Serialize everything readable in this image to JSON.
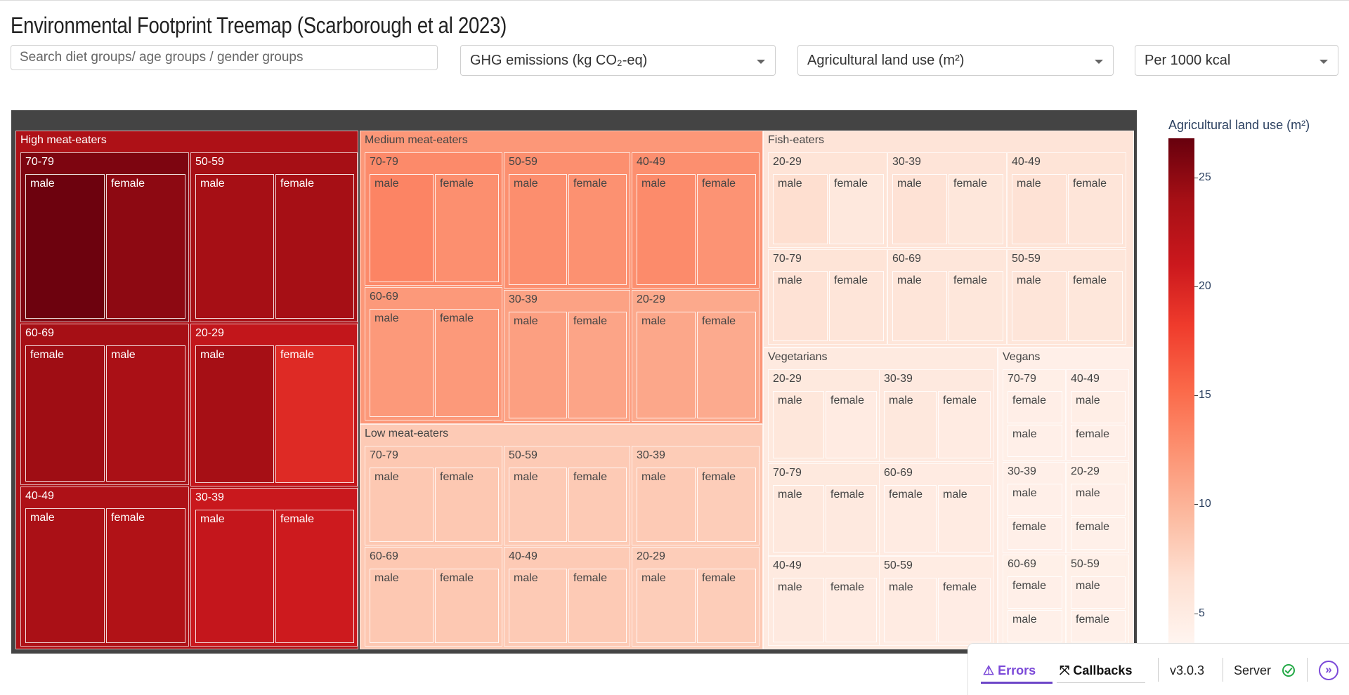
{
  "page": {
    "title": "Environmental Footprint Treemap (Scarborough et al 2023)"
  },
  "controls": {
    "search_placeholder": "Search diet groups/ age groups / gender groups",
    "emission_dropdown": "GHG emissions (kg CO₂-eq)",
    "land_dropdown": "Agricultural land use (m²)",
    "unit_dropdown": "Per 1000 kcal"
  },
  "colorbar": {
    "title": "Agricultural land use (m²)",
    "min": 3.6,
    "max": 26.8,
    "ticks": [
      5,
      10,
      15,
      20,
      25
    ],
    "colorscale": [
      "#fff5f0",
      "#fee0d2",
      "#fcbba1",
      "#fc9272",
      "#fb6a4a",
      "#ef3b2c",
      "#cb181d",
      "#a50f15",
      "#67000d"
    ]
  },
  "chart_data": {
    "type": "treemap",
    "color_metric": "Agricultural land use (m²)",
    "groups": [
      {
        "name": "High meat-eaters",
        "ages": [
          {
            "name": "70-79",
            "items": [
              {
                "name": "male",
                "value": 26.5
              },
              {
                "name": "female",
                "value": 25.0
              }
            ]
          },
          {
            "name": "50-59",
            "items": [
              {
                "name": "male",
                "value": 23.8
              },
              {
                "name": "female",
                "value": 23.8
              }
            ]
          },
          {
            "name": "60-69",
            "items": [
              {
                "name": "female",
                "value": 24.2
              },
              {
                "name": "male",
                "value": 23.5
              }
            ]
          },
          {
            "name": "20-29",
            "items": [
              {
                "name": "male",
                "value": 23.8
              },
              {
                "name": "female",
                "value": 19.5
              }
            ]
          },
          {
            "name": "40-49",
            "items": [
              {
                "name": "male",
                "value": 23.5
              },
              {
                "name": "female",
                "value": 23.0
              }
            ]
          },
          {
            "name": "30-39",
            "items": [
              {
                "name": "male",
                "value": 21.5
              },
              {
                "name": "female",
                "value": 20.8
              }
            ]
          }
        ]
      },
      {
        "name": "Medium meat-eaters",
        "ages": [
          {
            "name": "70-79",
            "items": [
              {
                "name": "male",
                "value": 13.3
              },
              {
                "name": "female",
                "value": 12.5
              }
            ]
          },
          {
            "name": "50-59",
            "items": [
              {
                "name": "male",
                "value": 12.6
              },
              {
                "name": "female",
                "value": 12.4
              }
            ]
          },
          {
            "name": "40-49",
            "items": [
              {
                "name": "male",
                "value": 12.8
              },
              {
                "name": "female",
                "value": 12.2
              }
            ]
          },
          {
            "name": "60-69",
            "items": [
              {
                "name": "male",
                "value": 11.8
              },
              {
                "name": "female",
                "value": 11.8
              }
            ]
          },
          {
            "name": "30-39",
            "items": [
              {
                "name": "male",
                "value": 11.4
              },
              {
                "name": "female",
                "value": 11.0
              }
            ]
          },
          {
            "name": "20-29",
            "items": [
              {
                "name": "male",
                "value": 10.8
              },
              {
                "name": "female",
                "value": 10.6
              }
            ]
          }
        ]
      },
      {
        "name": "Low meat-eaters",
        "ages": [
          {
            "name": "70-79",
            "items": [
              {
                "name": "male",
                "value": 8.4
              },
              {
                "name": "female",
                "value": 8.4
              }
            ]
          },
          {
            "name": "50-59",
            "items": [
              {
                "name": "male",
                "value": 8.2
              },
              {
                "name": "female",
                "value": 8.2
              }
            ]
          },
          {
            "name": "30-39",
            "items": [
              {
                "name": "male",
                "value": 8.2
              },
              {
                "name": "female",
                "value": 8.0
              }
            ]
          },
          {
            "name": "60-69",
            "items": [
              {
                "name": "male",
                "value": 8.4
              },
              {
                "name": "female",
                "value": 8.4
              }
            ]
          },
          {
            "name": "40-49",
            "items": [
              {
                "name": "male",
                "value": 8.2
              },
              {
                "name": "female",
                "value": 8.2
              }
            ]
          },
          {
            "name": "20-29",
            "items": [
              {
                "name": "male",
                "value": 8.0
              },
              {
                "name": "female",
                "value": 8.0
              }
            ]
          }
        ]
      },
      {
        "name": "Fish-eaters",
        "ages": [
          {
            "name": "20-29",
            "items": [
              {
                "name": "male",
                "value": 6.6
              },
              {
                "name": "female",
                "value": 5.4
              }
            ]
          },
          {
            "name": "30-39",
            "items": [
              {
                "name": "male",
                "value": 6.2
              },
              {
                "name": "female",
                "value": 5.6
              }
            ]
          },
          {
            "name": "40-49",
            "items": [
              {
                "name": "male",
                "value": 6.2
              },
              {
                "name": "female",
                "value": 5.8
              }
            ]
          },
          {
            "name": "70-79",
            "items": [
              {
                "name": "male",
                "value": 6.2
              },
              {
                "name": "female",
                "value": 5.8
              }
            ]
          },
          {
            "name": "60-69",
            "items": [
              {
                "name": "male",
                "value": 5.8
              },
              {
                "name": "female",
                "value": 5.6
              }
            ]
          },
          {
            "name": "50-59",
            "items": [
              {
                "name": "male",
                "value": 5.8
              },
              {
                "name": "female",
                "value": 5.6
              }
            ]
          }
        ]
      },
      {
        "name": "Vegetarians",
        "ages": [
          {
            "name": "20-29",
            "items": [
              {
                "name": "male",
                "value": 5.6
              },
              {
                "name": "female",
                "value": 5.0
              }
            ]
          },
          {
            "name": "30-39",
            "items": [
              {
                "name": "male",
                "value": 5.4
              },
              {
                "name": "female",
                "value": 5.0
              }
            ]
          },
          {
            "name": "70-79",
            "items": [
              {
                "name": "male",
                "value": 5.4
              },
              {
                "name": "female",
                "value": 5.2
              }
            ]
          },
          {
            "name": "60-69",
            "items": [
              {
                "name": "female",
                "value": 5.0
              },
              {
                "name": "male",
                "value": 5.0
              }
            ]
          },
          {
            "name": "40-49",
            "items": [
              {
                "name": "male",
                "value": 5.2
              },
              {
                "name": "female",
                "value": 5.0
              }
            ]
          },
          {
            "name": "50-59",
            "items": [
              {
                "name": "male",
                "value": 5.0
              },
              {
                "name": "female",
                "value": 4.8
              }
            ]
          }
        ]
      },
      {
        "name": "Vegans",
        "ages": [
          {
            "name": "70-79",
            "items": [
              {
                "name": "female",
                "value": 4.5
              },
              {
                "name": "male",
                "value": 4.4
              }
            ]
          },
          {
            "name": "40-49",
            "items": [
              {
                "name": "male",
                "value": 4.6
              },
              {
                "name": "female",
                "value": 4.4
              }
            ]
          },
          {
            "name": "30-39",
            "items": [
              {
                "name": "male",
                "value": 4.4
              },
              {
                "name": "female",
                "value": 4.4
              }
            ]
          },
          {
            "name": "20-29",
            "items": [
              {
                "name": "male",
                "value": 4.4
              },
              {
                "name": "female",
                "value": 4.3
              }
            ]
          },
          {
            "name": "60-69",
            "items": [
              {
                "name": "female",
                "value": 4.4
              },
              {
                "name": "male",
                "value": 4.3
              }
            ]
          },
          {
            "name": "50-59",
            "items": [
              {
                "name": "male",
                "value": 4.4
              },
              {
                "name": "female",
                "value": 4.3
              }
            ]
          }
        ]
      }
    ]
  },
  "devtools": {
    "errors_label": "Errors",
    "callbacks_label": "Callbacks",
    "version": "v3.0.3",
    "server_label": "Server"
  }
}
